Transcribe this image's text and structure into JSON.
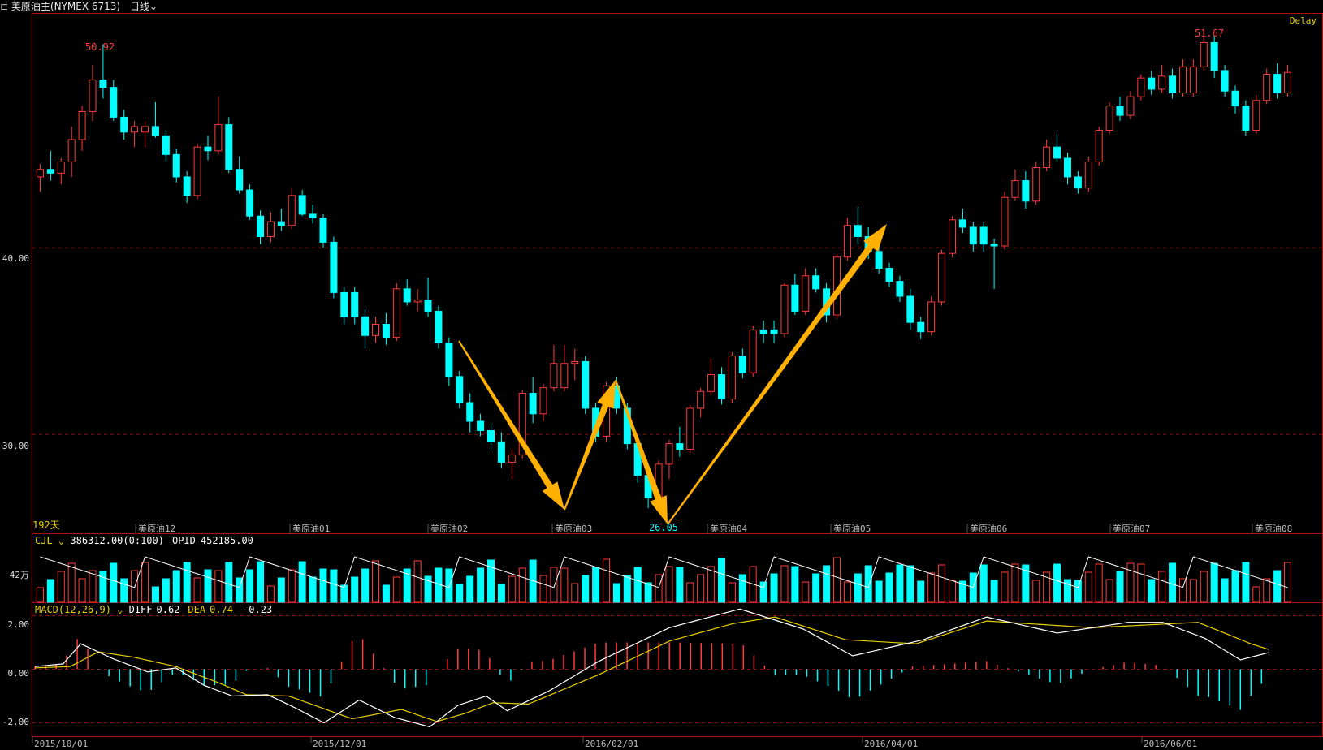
{
  "header": {
    "title": "美原油主(NYMEX 6713)",
    "period": "日线",
    "delay": "Delay"
  },
  "chart_data": [
    {
      "type": "candlestick",
      "panel": "price",
      "ylim": [
        25.0,
        52.5
      ],
      "yticks": [
        30.0,
        40.0
      ],
      "ytick_labels": [
        "30.00",
        "40.00"
      ],
      "grid": "dashed horizontal",
      "day_count_label": "192天",
      "annotations": {
        "high": "50.92",
        "low": "26.05",
        "high2": "51.67"
      },
      "contract_labels": [
        "美原油12",
        "美原油01",
        "美原油02",
        "美原油03",
        "美原油04",
        "美原油05",
        "美原油06",
        "美原油07",
        "美原油08"
      ],
      "colors": {
        "up": "#ff3b3b",
        "down": "#00ffff",
        "arrow": "#ffb000"
      },
      "pattern_arrows": [
        "down-leg",
        "up-leg",
        "down-leg",
        "up-leg"
      ],
      "ohlc_anchors": [
        [
          43.8,
          44.5,
          43.0,
          44.2
        ],
        [
          44.2,
          45.2,
          43.6,
          44.0
        ],
        [
          44.0,
          44.8,
          43.4,
          44.6
        ],
        [
          44.6,
          46.5,
          43.8,
          45.8
        ],
        [
          45.8,
          47.6,
          45.2,
          47.3
        ],
        [
          47.3,
          49.8,
          46.8,
          49.0
        ],
        [
          49.0,
          50.92,
          48.0,
          48.6
        ],
        [
          48.6,
          49.0,
          46.8,
          47.0
        ],
        [
          47.0,
          47.4,
          45.8,
          46.2
        ],
        [
          46.2,
          46.8,
          45.4,
          46.5
        ],
        [
          46.5,
          47.8,
          45.9,
          46.0
        ],
        [
          46.0,
          46.3,
          44.6,
          45.0
        ],
        [
          45.0,
          45.3,
          43.5,
          43.8
        ],
        [
          43.8,
          44.1,
          42.4,
          42.8
        ],
        [
          42.8,
          45.6,
          42.6,
          45.4
        ],
        [
          45.4,
          46.0,
          44.7,
          45.2
        ],
        [
          45.2,
          48.1,
          45.0,
          46.6
        ],
        [
          46.6,
          47.0,
          44.0,
          44.2
        ],
        [
          44.2,
          44.9,
          42.9,
          43.1
        ],
        [
          43.1,
          43.4,
          41.5,
          41.7
        ],
        [
          41.7,
          42.0,
          40.2,
          40.6
        ],
        [
          40.6,
          41.9,
          40.3,
          41.4
        ],
        [
          41.4,
          42.1,
          40.9,
          41.2
        ],
        [
          41.2,
          43.2,
          41.0,
          42.8
        ],
        [
          42.8,
          43.1,
          41.7,
          41.8
        ],
        [
          41.8,
          42.3,
          41.3,
          41.6
        ],
        [
          41.6,
          41.8,
          40.0,
          40.3
        ],
        [
          40.3,
          40.6,
          37.3,
          37.6
        ],
        [
          37.6,
          37.9,
          35.9,
          36.3
        ],
        [
          36.3,
          36.7,
          34.6,
          35.3
        ],
        [
          35.3,
          36.3,
          34.9,
          35.9
        ],
        [
          35.9,
          36.5,
          34.8,
          35.2
        ],
        [
          35.2,
          38.1,
          35.0,
          37.8
        ],
        [
          37.8,
          38.3,
          36.9,
          37.1
        ],
        [
          37.1,
          37.8,
          36.6,
          37.2
        ],
        [
          37.2,
          38.4,
          36.3,
          36.6
        ],
        [
          36.6,
          36.9,
          34.6,
          34.9
        ],
        [
          34.9,
          35.2,
          32.6,
          33.1
        ],
        [
          33.1,
          33.4,
          31.4,
          31.7
        ],
        [
          31.7,
          32.2,
          30.1,
          30.7
        ],
        [
          30.7,
          31.1,
          29.9,
          30.2
        ],
        [
          30.2,
          30.6,
          29.2,
          29.6
        ],
        [
          29.6,
          30.1,
          28.2,
          28.5
        ],
        [
          28.5,
          29.2,
          27.6,
          28.9
        ],
        [
          28.9,
          32.4,
          28.7,
          32.2
        ],
        [
          32.2,
          33.1,
          30.6,
          31.1
        ],
        [
          31.1,
          32.7,
          30.7,
          32.5
        ],
        [
          32.5,
          34.8,
          32.3,
          33.8
        ],
        [
          33.8,
          34.6,
          32.9,
          33.9
        ],
        [
          33.9,
          34.2,
          31.1,
          31.4
        ],
        [
          31.4,
          31.7,
          29.6,
          29.9
        ],
        [
          29.9,
          32.8,
          29.6,
          32.6
        ],
        [
          32.6,
          33.1,
          31.1,
          31.4
        ],
        [
          31.4,
          31.7,
          29.2,
          29.5
        ],
        [
          29.5,
          29.8,
          27.4,
          27.8
        ],
        [
          27.8,
          28.1,
          26.05,
          26.6
        ],
        [
          26.6,
          28.6,
          26.4,
          28.4
        ],
        [
          28.4,
          29.7,
          27.6,
          29.5
        ],
        [
          29.5,
          30.4,
          28.8,
          29.2
        ],
        [
          29.2,
          31.6,
          29.0,
          31.4
        ],
        [
          31.4,
          32.5,
          30.9,
          32.3
        ],
        [
          32.3,
          34.1,
          32.1,
          33.2
        ],
        [
          33.2,
          33.6,
          31.6,
          31.9
        ],
        [
          31.9,
          34.4,
          31.7,
          34.2
        ],
        [
          34.2,
          34.6,
          33.0,
          33.3
        ],
        [
          33.3,
          35.8,
          33.1,
          35.6
        ],
        [
          35.6,
          36.1,
          34.9,
          35.4
        ],
        [
          35.4,
          38.1,
          35.2,
          38.0
        ],
        [
          38.0,
          38.6,
          36.4,
          36.6
        ],
        [
          36.6,
          38.9,
          36.4,
          38.5
        ],
        [
          38.5,
          38.9,
          37.6,
          37.8
        ],
        [
          37.8,
          38.1,
          36.0,
          36.4
        ],
        [
          36.4,
          39.7,
          36.2,
          39.5
        ],
        [
          39.5,
          41.6,
          39.3,
          41.2
        ],
        [
          41.2,
          42.2,
          40.2,
          40.6
        ],
        [
          40.6,
          41.1,
          39.4,
          39.8
        ],
        [
          39.8,
          40.2,
          38.6,
          38.9
        ],
        [
          38.9,
          39.2,
          37.9,
          38.2
        ],
        [
          38.2,
          38.5,
          37.1,
          37.4
        ],
        [
          37.4,
          37.8,
          35.6,
          36.0
        ],
        [
          36.0,
          36.3,
          35.1,
          35.5
        ],
        [
          35.5,
          37.4,
          35.3,
          37.1
        ],
        [
          37.1,
          39.9,
          36.9,
          39.7
        ],
        [
          39.7,
          41.7,
          39.5,
          41.5
        ],
        [
          41.5,
          42.1,
          40.8,
          41.1
        ],
        [
          41.1,
          41.4,
          39.8,
          40.2
        ],
        [
          40.2,
          40.5,
          37.8,
          40.1
        ],
        [
          40.1,
          43.0,
          39.9,
          42.7
        ],
        [
          42.7,
          44.2,
          42.5,
          43.6
        ],
        [
          43.6,
          44.1,
          42.1,
          42.5
        ],
        [
          42.5,
          44.6,
          42.3,
          44.3
        ],
        [
          44.3,
          45.8,
          44.1,
          45.4
        ],
        [
          45.4,
          46.1,
          44.6,
          44.8
        ],
        [
          44.8,
          45.1,
          43.4,
          43.8
        ],
        [
          43.8,
          44.1,
          42.9,
          43.2
        ],
        [
          43.2,
          44.9,
          43.0,
          44.6
        ],
        [
          44.6,
          46.5,
          44.4,
          46.3
        ],
        [
          46.3,
          47.8,
          46.1,
          47.6
        ],
        [
          47.6,
          48.1,
          46.8,
          47.1
        ],
        [
          47.1,
          48.4,
          46.9,
          48.1
        ],
        [
          48.1,
          49.3,
          47.9,
          49.1
        ],
        [
          49.1,
          49.5,
          48.2,
          48.5
        ],
        [
          48.5,
          49.8,
          48.3,
          49.2
        ],
        [
          49.2,
          49.6,
          48.0,
          48.3
        ],
        [
          48.3,
          50.1,
          48.1,
          49.7
        ],
        [
          49.7,
          51.67,
          49.5,
          51.0
        ],
        [
          51.0,
          51.4,
          49.1,
          49.5
        ],
        [
          49.5,
          49.8,
          48.1,
          48.4
        ],
        [
          48.4,
          48.7,
          47.2,
          47.6
        ],
        [
          47.6,
          47.9,
          46.0,
          46.3
        ],
        [
          46.3,
          48.2,
          46.1,
          47.9
        ],
        [
          47.9,
          49.6,
          47.7,
          49.3
        ],
        [
          49.3,
          49.9,
          48.0,
          48.3
        ],
        [
          48.3,
          49.8,
          48.1,
          49.4
        ]
      ],
      "x_date_labels": [
        "2015/10/01",
        "2015/12/01",
        "2016/02/01",
        "2016/04/01",
        "2016/06/01"
      ]
    },
    {
      "type": "bar",
      "panel": "volume",
      "label": "CJL",
      "value": "386312.00(0:100)",
      "opid_label": "OPID",
      "opid_value": "452185.00",
      "ytick_label": "42万"
    },
    {
      "type": "line",
      "panel": "macd",
      "label": "MACD(12,26,9)",
      "diff_label": "DIFF",
      "diff_value": "0.62",
      "dea_label": "DEA",
      "dea_value": "0.74",
      "macd_value": "-0.23",
      "ylim": [
        -2.5,
        2.5
      ],
      "yticks": [
        2.0,
        0.0,
        -2.0
      ],
      "ytick_labels": [
        "2.00",
        "0.00",
        "-2.00"
      ],
      "diff_anchors": [
        [
          0,
          0.1
        ],
        [
          8,
          0.2
        ],
        [
          13,
          0.95
        ],
        [
          22,
          0.4
        ],
        [
          32,
          -0.1
        ],
        [
          40,
          0.05
        ],
        [
          48,
          -0.6
        ],
        [
          56,
          -1.0
        ],
        [
          66,
          -0.95
        ],
        [
          74,
          -1.45
        ],
        [
          82,
          -2.0
        ],
        [
          92,
          -1.15
        ],
        [
          102,
          -1.8
        ],
        [
          112,
          -2.15
        ],
        [
          120,
          -1.35
        ],
        [
          128,
          -1.0
        ],
        [
          134,
          -1.55
        ],
        [
          146,
          -0.8
        ],
        [
          160,
          0.3
        ],
        [
          180,
          1.55
        ],
        [
          200,
          2.25
        ],
        [
          218,
          1.5
        ],
        [
          232,
          0.5
        ],
        [
          252,
          1.1
        ],
        [
          270,
          1.95
        ],
        [
          290,
          1.35
        ],
        [
          310,
          1.75
        ],
        [
          320,
          1.75
        ],
        [
          332,
          1.15
        ],
        [
          342,
          0.35
        ],
        [
          350,
          0.62
        ]
      ],
      "dea_anchors": [
        [
          0,
          0.05
        ],
        [
          10,
          0.1
        ],
        [
          18,
          0.65
        ],
        [
          28,
          0.45
        ],
        [
          40,
          0.1
        ],
        [
          52,
          -0.5
        ],
        [
          60,
          -0.95
        ],
        [
          72,
          -1.0
        ],
        [
          90,
          -1.85
        ],
        [
          104,
          -1.5
        ],
        [
          114,
          -1.95
        ],
        [
          122,
          -1.65
        ],
        [
          130,
          -1.25
        ],
        [
          140,
          -1.3
        ],
        [
          160,
          -0.2
        ],
        [
          180,
          1.05
        ],
        [
          198,
          1.7
        ],
        [
          210,
          1.95
        ],
        [
          230,
          1.1
        ],
        [
          250,
          0.95
        ],
        [
          270,
          1.8
        ],
        [
          300,
          1.55
        ],
        [
          330,
          1.75
        ],
        [
          345,
          0.95
        ],
        [
          350,
          0.74
        ]
      ]
    }
  ]
}
